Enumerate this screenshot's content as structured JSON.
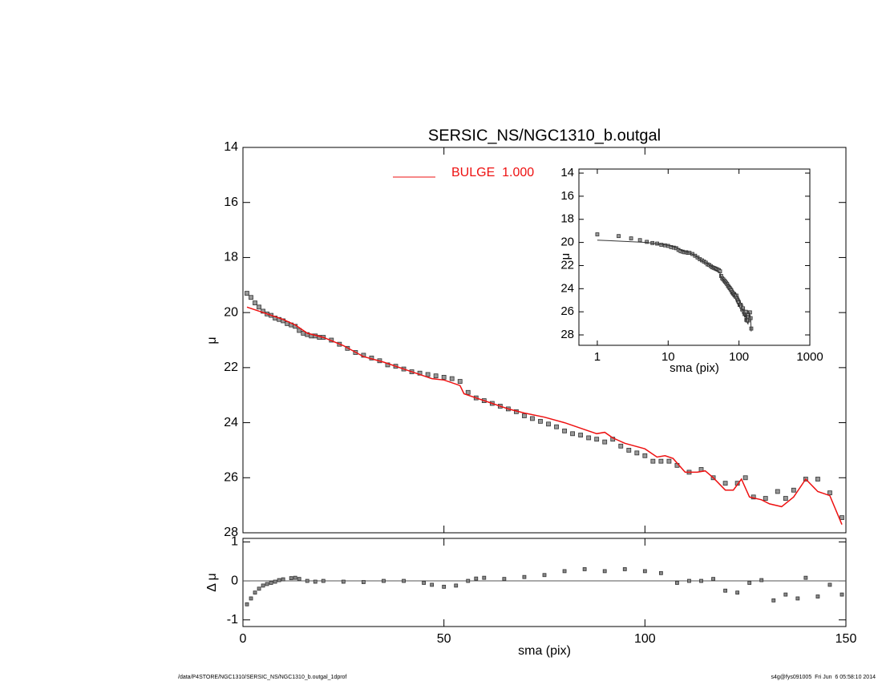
{
  "chart_data": [
    {
      "type": "line",
      "title": "SERSIC_NS/NGC1310_b.outgal",
      "ylabel": "μ",
      "xlim": [
        0,
        150
      ],
      "ylim": [
        28,
        14
      ],
      "xticks": [
        0,
        50,
        100,
        150
      ],
      "xtick_labels": false,
      "yticks": [
        14,
        16,
        18,
        20,
        22,
        24,
        26,
        28
      ],
      "legend": "upper-center",
      "series": [
        {
          "color": "#999999",
          "marker": "square",
          "x": [
            1,
            2,
            3,
            4,
            5,
            6,
            7,
            8,
            9,
            10,
            11,
            12,
            13,
            14,
            15,
            16,
            17,
            18,
            19,
            20,
            22,
            24,
            26,
            28,
            30,
            32,
            34,
            36,
            38,
            40,
            42,
            44,
            46,
            48,
            50,
            52,
            54,
            56,
            58,
            60,
            62,
            64,
            66,
            68,
            70,
            72,
            74,
            76,
            78,
            80,
            82,
            84,
            86,
            88,
            90,
            92,
            94,
            96,
            98,
            100,
            102,
            104,
            106,
            108,
            111,
            114,
            117,
            120,
            123,
            125,
            127,
            130,
            133,
            135,
            137,
            140,
            143,
            146,
            149
          ],
          "values": [
            19.3,
            19.45,
            19.65,
            19.8,
            19.95,
            20.05,
            20.1,
            20.2,
            20.25,
            20.3,
            20.4,
            20.45,
            20.5,
            20.65,
            20.75,
            20.8,
            20.85,
            20.85,
            20.9,
            20.9,
            21.0,
            21.15,
            21.3,
            21.45,
            21.55,
            21.65,
            21.75,
            21.9,
            21.95,
            22.05,
            22.15,
            22.2,
            22.25,
            22.3,
            22.35,
            22.4,
            22.5,
            22.9,
            23.1,
            23.2,
            23.3,
            23.4,
            23.5,
            23.6,
            23.75,
            23.85,
            23.95,
            24.05,
            24.15,
            24.3,
            24.4,
            24.45,
            24.55,
            24.6,
            24.7,
            24.6,
            24.85,
            25.0,
            25.1,
            25.2,
            25.4,
            25.4,
            25.4,
            25.55,
            25.8,
            25.7,
            26.0,
            26.2,
            26.2,
            26.0,
            26.7,
            26.75,
            26.5,
            26.75,
            26.45,
            26.05,
            26.05,
            26.55,
            27.45
          ]
        },
        {
          "name": "BULGE  1.000",
          "color": "#ee1111",
          "x": [
            1,
            5,
            10,
            13,
            14,
            16,
            20,
            25,
            30,
            35,
            40,
            45,
            47,
            50,
            54,
            55,
            58,
            62,
            66,
            70,
            75,
            80,
            85,
            88,
            90,
            92,
            95,
            100,
            103,
            105,
            107,
            110,
            113,
            115,
            117,
            120,
            122,
            124,
            126,
            129,
            131,
            134,
            137,
            140,
            143,
            146,
            149
          ],
          "values": [
            19.8,
            20.0,
            20.25,
            20.45,
            20.55,
            20.75,
            20.9,
            21.2,
            21.6,
            21.8,
            22.05,
            22.3,
            22.4,
            22.45,
            22.65,
            22.95,
            23.1,
            23.3,
            23.5,
            23.65,
            23.8,
            24.0,
            24.25,
            24.4,
            24.35,
            24.55,
            24.75,
            24.95,
            25.25,
            25.2,
            25.3,
            25.8,
            25.8,
            25.75,
            26.0,
            26.45,
            26.45,
            26.05,
            26.7,
            26.8,
            26.95,
            27.05,
            26.7,
            26.05,
            26.5,
            26.65,
            27.7
          ]
        }
      ]
    },
    {
      "type": "line",
      "xlabel": "sma (pix)",
      "ylabel": "μ",
      "xlog": true,
      "xlim": [
        0.55,
        1000
      ],
      "ylim": [
        28.9,
        13.65
      ],
      "xticks": [
        1,
        10,
        100,
        1000
      ],
      "yticks": [
        14,
        16,
        18,
        20,
        22,
        24,
        26,
        28
      ],
      "marker_color": "#999999",
      "line_color": "#333333"
    },
    {
      "type": "scatter",
      "xlabel": "sma (pix)",
      "ylabel": "Δ μ",
      "xlim": [
        0,
        150
      ],
      "ylim": [
        -1.17,
        1.09
      ],
      "xticks": [
        0,
        50,
        100,
        150
      ],
      "yticks": [
        -1,
        0,
        1
      ],
      "refline": 0,
      "color": "#888888",
      "x": [
        1,
        2,
        3,
        4,
        5,
        6,
        7,
        8,
        9,
        10,
        12,
        13,
        14,
        16,
        18,
        20,
        25,
        30,
        35,
        40,
        45,
        47,
        50,
        53,
        56,
        58,
        60,
        65,
        70,
        75,
        80,
        85,
        90,
        95,
        100,
        104,
        108,
        111,
        114,
        117,
        120,
        123,
        126,
        129,
        132,
        135,
        138,
        140,
        143,
        146,
        149
      ],
      "values": [
        -0.6,
        -0.45,
        -0.3,
        -0.2,
        -0.12,
        -0.08,
        -0.05,
        -0.02,
        0.02,
        0.04,
        0.07,
        0.08,
        0.05,
        0.0,
        -0.02,
        0.0,
        -0.02,
        -0.03,
        0.0,
        0.0,
        -0.05,
        -0.1,
        -0.15,
        -0.12,
        0.0,
        0.06,
        0.08,
        0.05,
        0.1,
        0.15,
        0.25,
        0.3,
        0.25,
        0.3,
        0.25,
        0.2,
        -0.05,
        0.0,
        0.0,
        0.05,
        -0.25,
        -0.3,
        -0.05,
        0.02,
        -0.5,
        -0.35,
        -0.45,
        0.08,
        -0.4,
        -0.1,
        -0.35
      ]
    }
  ],
  "footer": {
    "left": "/data/P4STORE/NGC1310/SERSIC_NS/NGC1310_b.outgal_1dprof",
    "right": "s4g@fys091005  Fri Jun  6 05:58:10 2014"
  }
}
